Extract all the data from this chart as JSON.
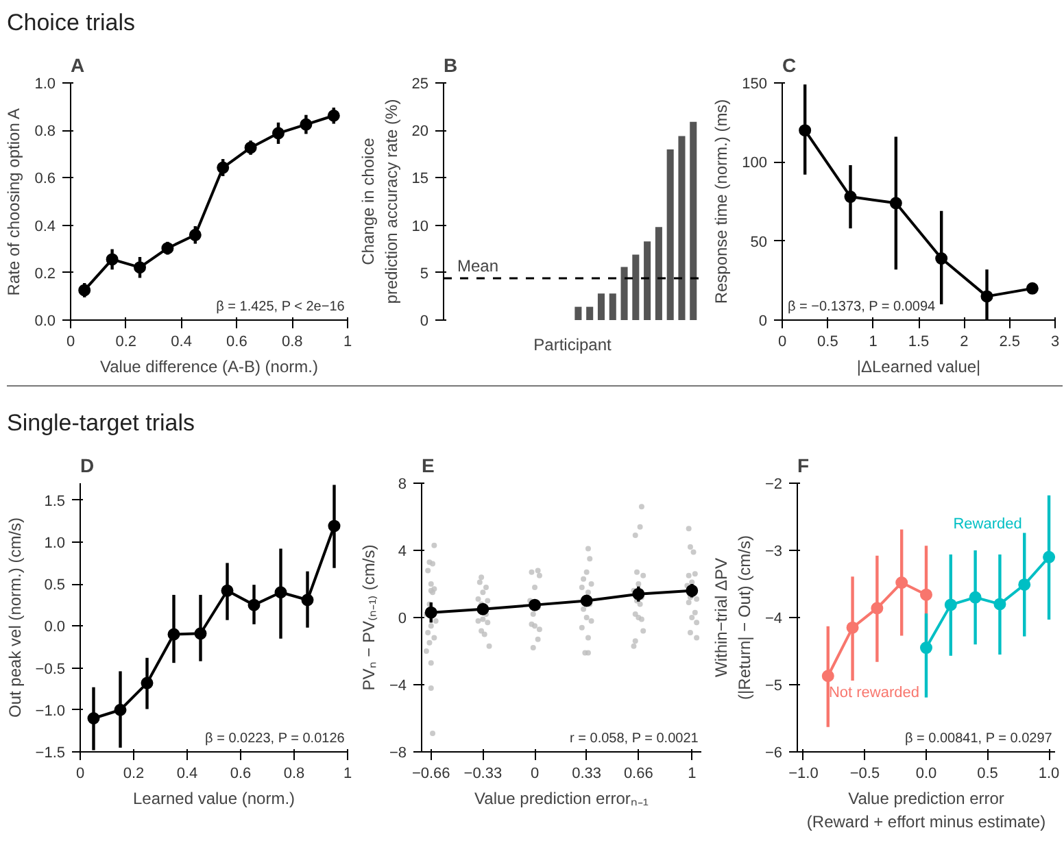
{
  "chart_data": [
    {
      "type": "line",
      "title": "A",
      "subtitle": "Choice trials",
      "xlabel": "Value difference (A-B) (norm.)",
      "ylabel": "Rate of choosing option A",
      "marker": "circle",
      "xlim": [
        0,
        1
      ],
      "ylim": [
        0,
        1
      ],
      "xticks": [
        0,
        0.2,
        0.4,
        0.6,
        0.8,
        1
      ],
      "yticks": [
        {
          "value": 0,
          "label": "0.0"
        },
        0.2,
        0.4,
        0.6,
        0.8,
        {
          "value": 1,
          "label": "1.0"
        }
      ],
      "annotations": [
        "β = 1.425, P < 2e−16"
      ],
      "series": [
        {
          "color": "#000000",
          "x": [
            0.05,
            0.15,
            0.25,
            0.35,
            0.45,
            0.55,
            0.65,
            0.75,
            0.85,
            0.95
          ],
          "values": [
            0.126,
            0.256,
            0.222,
            0.303,
            0.359,
            0.643,
            0.727,
            0.788,
            0.825,
            0.862
          ],
          "errors": [
            0.03,
            0.043,
            0.044,
            0.027,
            0.037,
            0.036,
            0.03,
            0.045,
            0.04,
            0.034
          ]
        }
      ]
    },
    {
      "type": "bar",
      "title": "B",
      "xlabel": "Participant",
      "ylabel": "Change in choice\nprediction accuracy rate (%)",
      "tick_labels": "y",
      "ylim": [
        0,
        25
      ],
      "yticks": [
        0,
        5,
        10,
        15,
        20,
        25
      ],
      "categories": [
        null,
        null,
        null,
        null,
        null,
        null,
        null,
        null,
        null,
        null,
        null,
        null,
        null,
        null,
        null,
        null,
        null,
        null,
        null,
        null,
        null,
        null
      ],
      "series": [
        {
          "color": "#555555",
          "values": [
            0,
            0,
            0,
            0,
            0,
            0,
            0,
            0,
            0,
            0,
            0,
            1.4,
            1.4,
            2.8,
            2.8,
            5.6,
            6.9,
            8.3,
            9.8,
            18.0,
            19.4,
            20.9
          ]
        }
      ],
      "ref_lines": [
        {
          "axis": "y",
          "value": 4.4,
          "label": "Mean",
          "color": "#000000",
          "line_style": "dashed"
        }
      ]
    },
    {
      "type": "line",
      "title": "C",
      "xlabel": "|ΔLearned value|",
      "ylabel": "Response time (norm.) (ms)",
      "marker": "circle",
      "xlim": [
        0,
        3
      ],
      "ylim": [
        0,
        150
      ],
      "xticks": [
        0,
        0.5,
        1,
        1.5,
        2,
        2.5,
        3
      ],
      "yticks": [
        0,
        50,
        100,
        150
      ],
      "annotations": [
        "β = −0.1373, P = 0.0094"
      ],
      "series": [
        {
          "color": "#000000",
          "x": [
            0.25,
            0.75,
            1.25,
            1.75,
            2.25,
            2.75
          ],
          "values": [
            120,
            78,
            74,
            39,
            15,
            20
          ],
          "errors": [
            [
              92,
              149
            ],
            [
              58,
              98
            ],
            [
              32,
              116
            ],
            [
              10,
              69
            ],
            [
              0,
              32
            ],
            null
          ]
        }
      ]
    },
    {
      "type": "line",
      "title": "D",
      "subtitle": "Single-target trials",
      "xlabel": "Learned value (norm.)",
      "ylabel": "Out peak vel (norm.) (cm/s)",
      "marker": "circle",
      "xlim": [
        0,
        1
      ],
      "ylim": [
        -1.5,
        1.7
      ],
      "xticks": [
        0,
        0.2,
        0.4,
        0.6,
        0.8,
        1
      ],
      "yticks": [
        {
          "value": -1.5,
          "label": "−1.5"
        },
        {
          "value": -1,
          "label": "−1.0"
        },
        {
          "value": -0.5,
          "label": "−0.5"
        },
        {
          "value": 0,
          "label": "0.0"
        },
        0.5,
        {
          "value": 1,
          "label": "1.0"
        },
        1.5
      ],
      "annotations": [
        "β = 0.0223, P = 0.0126"
      ],
      "series": [
        {
          "color": "#000000",
          "x": [
            0.05,
            0.15,
            0.25,
            0.35,
            0.45,
            0.55,
            0.65,
            0.75,
            0.85,
            0.95
          ],
          "values": [
            -1.1,
            -1.0,
            -0.68,
            -0.1,
            -0.09,
            0.42,
            0.25,
            0.4,
            0.31,
            1.19
          ],
          "errors": [
            [
              -1.48,
              -0.73
            ],
            [
              -1.45,
              -0.54
            ],
            [
              -0.99,
              -0.38
            ],
            [
              -0.44,
              0.37
            ],
            [
              -0.42,
              0.37
            ],
            [
              0.07,
              0.75
            ],
            [
              0.02,
              0.49
            ],
            [
              -0.15,
              0.92
            ],
            [
              -0.02,
              0.65
            ],
            [
              0.69,
              1.68
            ]
          ]
        }
      ]
    },
    {
      "type": "line",
      "title": "E",
      "xlabel": "Value prediction errorₙ₋₁",
      "ylabel": "PVₙ − PV₍ₙ₋₁₎ (cm/s)",
      "marker": "circle",
      "xlim": [
        -0.72,
        1.06
      ],
      "ylim": [
        -8,
        8
      ],
      "xticks": [
        {
          "value": -0.66,
          "label": "−0.66"
        },
        {
          "value": -0.33,
          "label": "−0.33"
        },
        0,
        0.33,
        0.66,
        1
      ],
      "yticks": [
        {
          "value": -8,
          "label": "−8"
        },
        {
          "value": -4,
          "label": "−4"
        },
        0,
        4,
        8
      ],
      "annotations": [
        "r = 0.058, P = 0.0021"
      ],
      "series": [
        {
          "type": "scatter",
          "color": "#bdbdbd",
          "x": [
            -0.64,
            -0.67,
            -0.65,
            -0.68,
            -0.66,
            -0.64,
            -0.66,
            -0.65,
            -0.67,
            -0.69,
            -0.63,
            -0.66,
            -0.68,
            -0.64,
            -0.67,
            -0.69,
            -0.66,
            -0.66,
            -0.65,
            -0.34,
            -0.35,
            -0.31,
            -0.33,
            -0.36,
            -0.3,
            -0.34,
            -0.35,
            -0.31,
            -0.33,
            -0.36,
            -0.3,
            -0.34,
            -0.32,
            -0.29,
            0.02,
            -0.02,
            0.03,
            0.0,
            -0.03,
            0.02,
            -0.01,
            -0.02,
            0.0,
            0.03,
            0.02,
            -0.01,
            0.34,
            0.35,
            0.33,
            0.31,
            0.36,
            0.3,
            0.34,
            0.35,
            0.31,
            0.33,
            0.36,
            0.3,
            0.34,
            0.32,
            0.34,
            0.68,
            0.67,
            0.64,
            0.65,
            0.69,
            0.66,
            0.63,
            0.68,
            0.65,
            0.67,
            0.64,
            0.66,
            0.68,
            0.69,
            0.64,
            0.63,
            0.98,
            0.99,
            1.01,
            1.02,
            0.98,
            1.0,
            0.97,
            0.99,
            1.03,
            0.98,
            1.02,
            1.0,
            1.03,
            0.99,
            1.03
          ],
          "values": [
            4.3,
            3.3,
            3.2,
            2.8,
            2.0,
            1.7,
            1.6,
            1.5,
            0.8,
            0.2,
            -0.2,
            -0.5,
            -0.9,
            -1.2,
            -1.5,
            -2.0,
            -2.7,
            -4.2,
            -6.9,
            2.4,
            2.1,
            1.8,
            1.5,
            1.1,
            1.0,
            0.8,
            0.4,
            0.2,
            -0.1,
            -0.2,
            -0.3,
            -0.8,
            -1.0,
            -1.7,
            2.8,
            2.7,
            2.5,
            1.8,
            1.0,
            0.6,
            0.2,
            -0.4,
            -0.5,
            -0.7,
            -1.3,
            -1.8,
            4.1,
            3.5,
            2.7,
            2.3,
            2.0,
            1.8,
            1.5,
            0.8,
            0.5,
            0.0,
            -0.2,
            -0.6,
            -1.2,
            -2.1,
            -2.1,
            6.6,
            5.4,
            4.9,
            2.7,
            2.5,
            2.0,
            1.6,
            1.2,
            1.0,
            0.8,
            0.2,
            0.0,
            -0.1,
            -0.8,
            -1.4,
            -1.7,
            5.3,
            4.2,
            3.9,
            2.6,
            2.5,
            2.1,
            1.9,
            1.2,
            1.1,
            0.9,
            0.3,
            0.0,
            -0.3,
            -0.9,
            -1.2
          ]
        },
        {
          "color": "#000000",
          "x": [
            -0.66,
            -0.33,
            0,
            0.33,
            0.66,
            1
          ],
          "values": [
            0.3,
            0.5,
            0.75,
            1.0,
            1.4,
            1.6
          ],
          "errors": [
            0.6,
            0.25,
            0.25,
            0.3,
            0.45,
            0.4
          ]
        }
      ]
    },
    {
      "type": "line",
      "title": "F",
      "xlabel": "Value prediction error\n(Reward + effort minus estimate)",
      "ylabel": "Within−trial ΔPV\n(|Return| − Out) (cm/s)",
      "marker": "circle",
      "xlim": [
        -1.05,
        1.05
      ],
      "ylim": [
        -6,
        -2
      ],
      "xticks": [
        {
          "value": -1,
          "label": "−1.0"
        },
        {
          "value": -0.5,
          "label": "−0.5"
        },
        {
          "value": 0,
          "label": "0.0"
        },
        0.5,
        {
          "value": 1,
          "label": "1.0"
        }
      ],
      "yticks": [
        {
          "value": -6,
          "label": "−6"
        },
        {
          "value": -5,
          "label": "−5"
        },
        {
          "value": -4,
          "label": "−4"
        },
        {
          "value": -3,
          "label": "−3"
        },
        {
          "value": -2,
          "label": "−2"
        }
      ],
      "annotations": [
        "β = 0.00841, P = 0.0297"
      ],
      "series": [
        {
          "name": "Not rewarded",
          "color": "#f8766d",
          "x": [
            -0.8,
            -0.6,
            -0.4,
            -0.2,
            0
          ],
          "values": [
            -4.87,
            -4.15,
            -3.86,
            -3.48,
            -3.66
          ],
          "errors": [
            [
              -5.63,
              -4.13
            ],
            [
              -4.94,
              -3.39
            ],
            [
              -4.66,
              -3.08
            ],
            [
              -4.27,
              -2.69
            ],
            [
              -4.4,
              -2.93
            ]
          ]
        },
        {
          "name": "Rewarded",
          "color": "#00bfc4",
          "x": [
            0,
            0.2,
            0.4,
            0.6,
            0.8,
            1.0
          ],
          "values": [
            -4.45,
            -3.81,
            -3.7,
            -3.8,
            -3.51,
            -3.1
          ],
          "errors": [
            [
              -5.19,
              -3.94
            ],
            [
              -4.57,
              -3.06
            ],
            [
              -4.4,
              -3.0
            ],
            [
              -4.55,
              -3.06
            ],
            [
              -4.28,
              -2.74
            ],
            [
              -4.03,
              -2.18
            ]
          ]
        }
      ]
    }
  ]
}
